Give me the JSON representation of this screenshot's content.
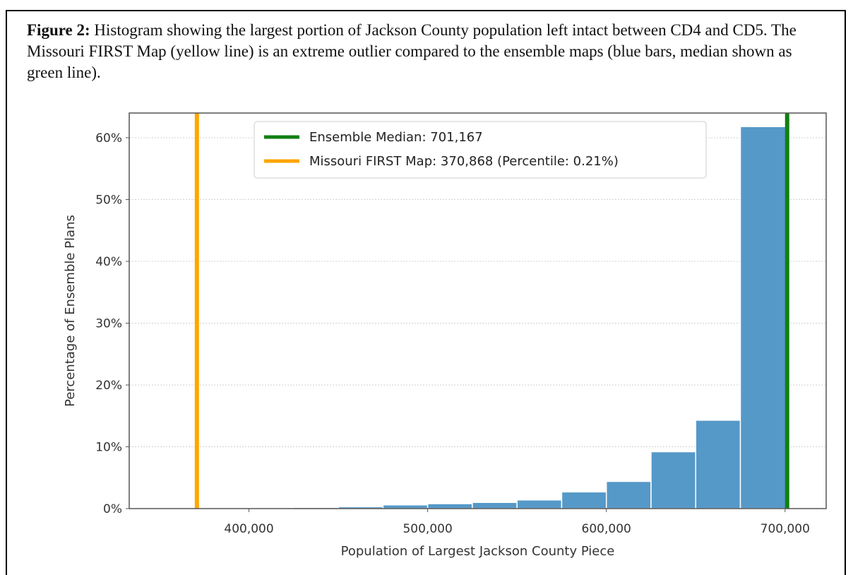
{
  "caption": {
    "label": "Figure 2:",
    "text": " Histogram showing the largest portion of Jackson County population left intact between CD4 and CD5. The Missouri FIRST Map (yellow line) is an extreme outlier compared to the ensemble maps (blue bars, median shown as green line)."
  },
  "colors": {
    "bars": "#5599c8",
    "median": "#128012",
    "first_map": "#ffa500",
    "grid": "#d0d0d0"
  },
  "chart_data": {
    "type": "bar",
    "xlabel": "Population of Largest Jackson County Piece",
    "ylabel": "Percentage of Ensemble Plans",
    "xlim": [
      333000,
      723000
    ],
    "ylim": [
      0,
      64
    ],
    "x_ticks": [
      {
        "value": 400000,
        "label": "400,000"
      },
      {
        "value": 500000,
        "label": "500,000"
      },
      {
        "value": 600000,
        "label": "600,000"
      },
      {
        "value": 700000,
        "label": "700,000"
      }
    ],
    "y_ticks": [
      {
        "value": 0,
        "label": "0%"
      },
      {
        "value": 10,
        "label": "10%"
      },
      {
        "value": 20,
        "label": "20%"
      },
      {
        "value": 30,
        "label": "30%"
      },
      {
        "value": 40,
        "label": "40%"
      },
      {
        "value": 50,
        "label": "50%"
      },
      {
        "value": 60,
        "label": "60%"
      }
    ],
    "grid": "horizontal",
    "bins": [
      {
        "x0": 400000,
        "x1": 425000,
        "value": 0.1
      },
      {
        "x0": 425000,
        "x1": 450000,
        "value": 0.2
      },
      {
        "x0": 450000,
        "x1": 475000,
        "value": 0.3
      },
      {
        "x0": 475000,
        "x1": 500000,
        "value": 0.6
      },
      {
        "x0": 500000,
        "x1": 525000,
        "value": 0.8
      },
      {
        "x0": 525000,
        "x1": 550000,
        "value": 1.0
      },
      {
        "x0": 550000,
        "x1": 575000,
        "value": 1.4
      },
      {
        "x0": 575000,
        "x1": 600000,
        "value": 2.7
      },
      {
        "x0": 600000,
        "x1": 625000,
        "value": 4.4
      },
      {
        "x0": 625000,
        "x1": 650000,
        "value": 9.2
      },
      {
        "x0": 650000,
        "x1": 675000,
        "value": 14.3
      },
      {
        "x0": 675000,
        "x1": 701000,
        "value": 61.8
      }
    ],
    "vlines": [
      {
        "key": "median",
        "value": 701167,
        "label": "Ensemble Median: 701,167"
      },
      {
        "key": "first_map",
        "value": 370868,
        "label": "Missouri FIRST Map: 370,868 (Percentile: 0.21%)"
      }
    ],
    "legend_position": "top-center"
  }
}
